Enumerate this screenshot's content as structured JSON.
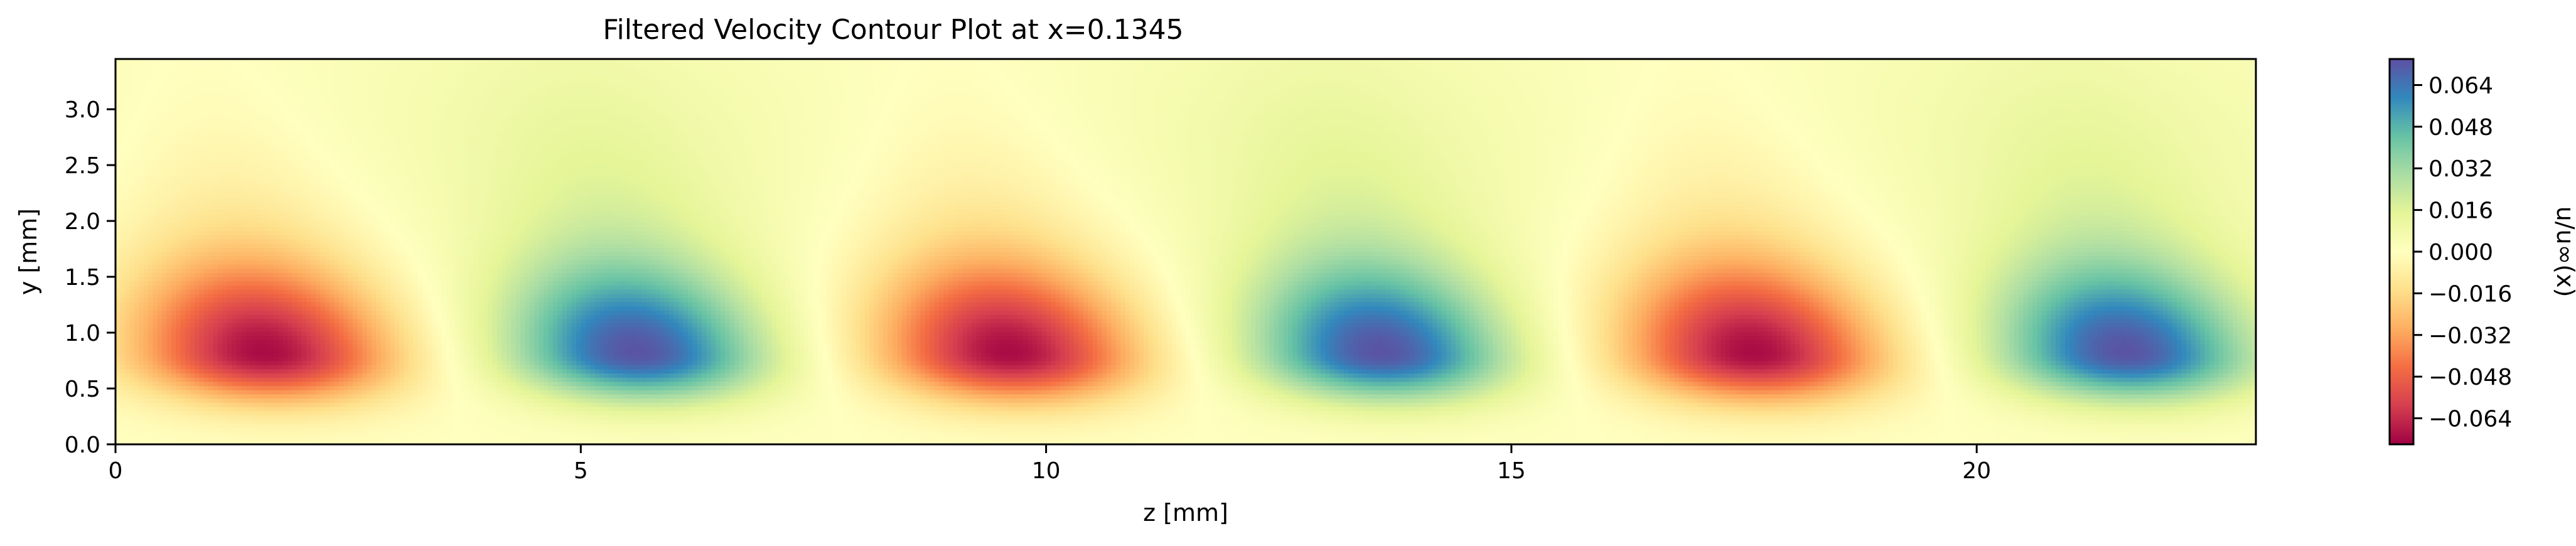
{
  "chart_data": {
    "type": "heatmap",
    "title": "Filtered Velocity Contour Plot at x=0.1345",
    "xlabel": "z [mm]",
    "ylabel": "y [mm]",
    "xlim": [
      0,
      23
    ],
    "ylim": [
      0,
      3.45
    ],
    "x_ticks": [
      0,
      5,
      10,
      15,
      20
    ],
    "x_tick_labels": [
      "0",
      "5",
      "10",
      "15",
      "20"
    ],
    "y_ticks": [
      0.0,
      0.5,
      1.0,
      1.5,
      2.0,
      2.5,
      3.0
    ],
    "y_tick_labels": [
      "0.0",
      "0.5",
      "1.0",
      "1.5",
      "2.0",
      "2.5",
      "3.0"
    ],
    "colorbar": {
      "label": "u/u∞(x)",
      "range": [
        -0.074,
        0.074
      ],
      "colormap": "Spectral",
      "ticks": [
        -0.064,
        -0.048,
        -0.032,
        -0.016,
        0.0,
        0.016,
        0.032,
        0.048,
        0.064
      ],
      "tick_labels": [
        "−0.064",
        "−0.048",
        "−0.032",
        "−0.016",
        "0.000",
        "0.016",
        "0.032",
        "0.048",
        "0.064"
      ]
    },
    "field": {
      "description_of_structure": "alternating streaks",
      "streaks": [
        {
          "z_center": 1.6,
          "y_center": 0.82,
          "peak_value": -0.072
        },
        {
          "z_center": 5.6,
          "y_center": 0.82,
          "peak_value": 0.072
        },
        {
          "z_center": 9.6,
          "y_center": 0.82,
          "peak_value": -0.072
        },
        {
          "z_center": 13.6,
          "y_center": 0.82,
          "peak_value": 0.072
        },
        {
          "z_center": 17.6,
          "y_center": 0.82,
          "peak_value": -0.072
        },
        {
          "z_center": 21.6,
          "y_center": 0.82,
          "peak_value": 0.072
        }
      ],
      "spanwise_period": 8.0,
      "background_value": 0.005
    },
    "grid": false
  }
}
